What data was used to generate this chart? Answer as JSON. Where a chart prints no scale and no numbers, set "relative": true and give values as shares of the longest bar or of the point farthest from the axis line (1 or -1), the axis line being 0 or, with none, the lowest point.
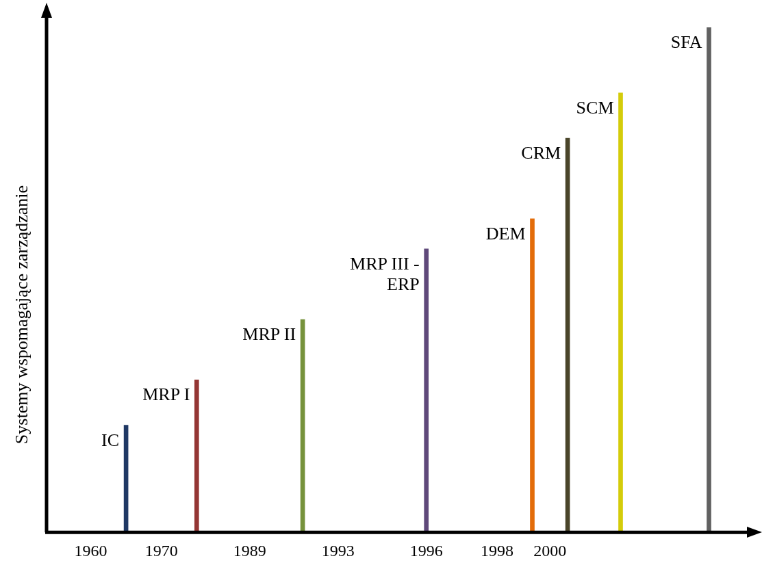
{
  "chart_data": {
    "type": "bar",
    "relative": true,
    "ylabel": "Systemy wspomagające zarządzanie",
    "legend": false,
    "grid": false,
    "categories": [
      null,
      null,
      "1960",
      null,
      null,
      null,
      "1970",
      null,
      null,
      null,
      null,
      "1989",
      null,
      null,
      null,
      null,
      "1993",
      null,
      null,
      null,
      null,
      "1996",
      null,
      null,
      null,
      "1998",
      null,
      null,
      "2000",
      null,
      null,
      null,
      null,
      null,
      null,
      null,
      null,
      null,
      null,
      null
    ],
    "series": [
      {
        "name": "IC",
        "color": "#1f3864",
        "values": [
          null,
          null,
          null,
          null,
          0.21,
          null,
          null,
          null,
          null,
          null,
          null,
          null,
          null,
          null,
          null,
          null,
          null,
          null,
          null,
          null,
          null,
          null,
          null,
          null,
          null,
          null,
          null,
          null,
          null,
          null,
          null,
          null,
          null,
          null,
          null,
          null,
          null,
          null,
          null,
          null
        ]
      },
      {
        "name": "MRP I",
        "color": "#943634",
        "values": [
          null,
          null,
          null,
          null,
          null,
          null,
          null,
          null,
          0.3,
          null,
          null,
          null,
          null,
          null,
          null,
          null,
          null,
          null,
          null,
          null,
          null,
          null,
          null,
          null,
          null,
          null,
          null,
          null,
          null,
          null,
          null,
          null,
          null,
          null,
          null,
          null,
          null,
          null,
          null,
          null
        ]
      },
      {
        "name": "MRP II",
        "color": "#76923c",
        "values": [
          null,
          null,
          null,
          null,
          null,
          null,
          null,
          null,
          null,
          null,
          null,
          null,
          null,
          null,
          0.42,
          null,
          null,
          null,
          null,
          null,
          null,
          null,
          null,
          null,
          null,
          null,
          null,
          null,
          null,
          null,
          null,
          null,
          null,
          null,
          null,
          null,
          null,
          null,
          null,
          null
        ]
      },
      {
        "name": "MRP III - ERP",
        "color": "#5f497a",
        "values": [
          null,
          null,
          null,
          null,
          null,
          null,
          null,
          null,
          null,
          null,
          null,
          null,
          null,
          null,
          null,
          null,
          null,
          null,
          null,
          null,
          null,
          0.56,
          null,
          null,
          null,
          null,
          null,
          null,
          null,
          null,
          null,
          null,
          null,
          null,
          null,
          null,
          null,
          null,
          null,
          null
        ]
      },
      {
        "name": "DEM",
        "color": "#e36c09",
        "values": [
          null,
          null,
          null,
          null,
          null,
          null,
          null,
          null,
          null,
          null,
          null,
          null,
          null,
          null,
          null,
          null,
          null,
          null,
          null,
          null,
          null,
          null,
          null,
          null,
          null,
          null,
          null,
          0.62,
          null,
          null,
          null,
          null,
          null,
          null,
          null,
          null,
          null,
          null,
          null,
          null
        ]
      },
      {
        "name": "CRM",
        "color": "#4a452a",
        "values": [
          null,
          null,
          null,
          null,
          null,
          null,
          null,
          null,
          null,
          null,
          null,
          null,
          null,
          null,
          null,
          null,
          null,
          null,
          null,
          null,
          null,
          null,
          null,
          null,
          null,
          null,
          null,
          null,
          null,
          0.78,
          null,
          null,
          null,
          null,
          null,
          null,
          null,
          null,
          null,
          null
        ]
      },
      {
        "name": "SCM",
        "color": "#d4cc0a",
        "values": [
          null,
          null,
          null,
          null,
          null,
          null,
          null,
          null,
          null,
          null,
          null,
          null,
          null,
          null,
          null,
          null,
          null,
          null,
          null,
          null,
          null,
          null,
          null,
          null,
          null,
          null,
          null,
          null,
          null,
          null,
          null,
          null,
          0.87,
          null,
          null,
          null,
          null,
          null,
          null,
          null
        ]
      },
      {
        "name": "SFA",
        "color": "#616161",
        "values": [
          null,
          null,
          null,
          null,
          null,
          null,
          null,
          null,
          null,
          null,
          null,
          null,
          null,
          null,
          null,
          null,
          null,
          null,
          null,
          null,
          null,
          null,
          null,
          null,
          null,
          null,
          null,
          null,
          null,
          null,
          null,
          null,
          null,
          null,
          null,
          null,
          null,
          1,
          null,
          null
        ]
      }
    ]
  }
}
